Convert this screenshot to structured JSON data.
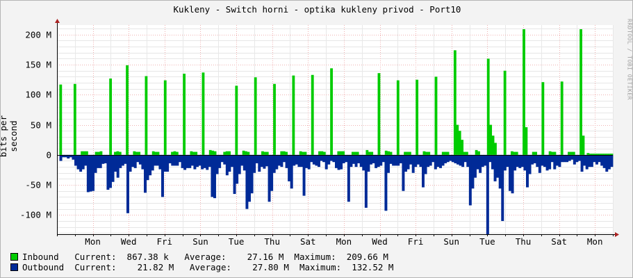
{
  "chart_data": {
    "type": "area",
    "title": "Kukleny - Switch horni - optika kukleny privod - Port10",
    "ylabel": "bits per second",
    "watermark": "RRDTOOL / TOBI OETIKER",
    "ylim": [
      -132,
      216
    ],
    "yunit": "M",
    "yticks": [
      {
        "value": 200,
        "label": "200 M"
      },
      {
        "value": 150,
        "label": "150 M"
      },
      {
        "value": 100,
        "label": "100 M"
      },
      {
        "value": 50,
        "label": "50 M"
      },
      {
        "value": 0,
        "label": "0"
      },
      {
        "value": -50,
        "label": "-50 M"
      },
      {
        "value": -100,
        "label": "-100 M"
      }
    ],
    "x_range_days": 15.5,
    "day_labels": [
      "Mon",
      "Wed",
      "Fri",
      "Sun",
      "Tue",
      "Thu",
      "Sat",
      "Mon",
      "Wed",
      "Fri",
      "Sun",
      "Tue",
      "Thu",
      "Sat",
      "Mon"
    ],
    "grid": true,
    "series": [
      {
        "name": "Inbound",
        "color": "#00cc00",
        "values": [
          0,
          117,
          0,
          0,
          0,
          0,
          0,
          118,
          0,
          0,
          6,
          6,
          6,
          0,
          0,
          0,
          5,
          5,
          6,
          0,
          0,
          0,
          127,
          0,
          5,
          6,
          5,
          0,
          0,
          149,
          0,
          0,
          6,
          5,
          5,
          0,
          0,
          131,
          0,
          0,
          6,
          5,
          5,
          0,
          0,
          124,
          0,
          0,
          5,
          6,
          5,
          0,
          0,
          135,
          0,
          0,
          6,
          5,
          5,
          0,
          0,
          137,
          0,
          0,
          8,
          7,
          6,
          0,
          0,
          0,
          5,
          6,
          6,
          0,
          0,
          115,
          0,
          0,
          7,
          6,
          5,
          0,
          0,
          129,
          0,
          0,
          6,
          5,
          5,
          0,
          0,
          118,
          0,
          0,
          6,
          6,
          5,
          0,
          0,
          132,
          0,
          0,
          6,
          5,
          5,
          0,
          0,
          133,
          0,
          0,
          6,
          6,
          5,
          0,
          0,
          144,
          0,
          0,
          6,
          6,
          6,
          0,
          0,
          0,
          5,
          5,
          5,
          0,
          0,
          0,
          8,
          5,
          5,
          0,
          0,
          136,
          0,
          0,
          7,
          6,
          5,
          0,
          0,
          124,
          0,
          0,
          5,
          5,
          5,
          0,
          0,
          125,
          0,
          0,
          6,
          5,
          5,
          0,
          0,
          130,
          0,
          0,
          5,
          5,
          5,
          0,
          0,
          174,
          50,
          40,
          25,
          5,
          5,
          0,
          0,
          0,
          8,
          6,
          0,
          0,
          0,
          160,
          50,
          32,
          20,
          0,
          0,
          0,
          140,
          0,
          0,
          6,
          5,
          5,
          0,
          0,
          209,
          46,
          0,
          0,
          5,
          5,
          0,
          0,
          121,
          0,
          0,
          6,
          5,
          5,
          0,
          0,
          122,
          0,
          0,
          5,
          5,
          5,
          0,
          0,
          209,
          32,
          0,
          3,
          2,
          2,
          2,
          2,
          2,
          2,
          2,
          2,
          2,
          2
        ]
      },
      {
        "name": "Outbound",
        "color": "#002a97",
        "values": [
          0,
          -10,
          -4,
          -4,
          -6,
          -4,
          -8,
          -18,
          -24,
          -28,
          -24,
          -18,
          -62,
          -61,
          -60,
          -30,
          -22,
          -22,
          -15,
          -14,
          -58,
          -55,
          -45,
          -28,
          -38,
          -22,
          -18,
          -15,
          -97,
          -28,
          -20,
          -22,
          -12,
          -16,
          -24,
          -63,
          -42,
          -34,
          -26,
          -18,
          -18,
          -24,
          -70,
          -28,
          -28,
          -14,
          -18,
          -18,
          -18,
          -12,
          -22,
          -25,
          -22,
          -22,
          -18,
          -24,
          -20,
          -18,
          -24,
          -22,
          -25,
          -20,
          -70,
          -72,
          -32,
          -22,
          -12,
          -16,
          -34,
          -28,
          -20,
          -65,
          -48,
          -32,
          -18,
          -26,
          -90,
          -78,
          -64,
          -30,
          -14,
          -28,
          -20,
          -23,
          -19,
          -78,
          -60,
          -30,
          -24,
          -18,
          -20,
          -12,
          -22,
          -44,
          -56,
          -18,
          -16,
          -20,
          -20,
          -68,
          -22,
          -24,
          -12,
          -16,
          -18,
          -20,
          -10,
          -12,
          -24,
          -16,
          -10,
          -12,
          -22,
          -25,
          -24,
          -14,
          -12,
          -78,
          -20,
          -15,
          -20,
          -14,
          -20,
          -26,
          -88,
          -28,
          -16,
          -14,
          -22,
          -20,
          -18,
          -12,
          -93,
          -30,
          -15,
          -18,
          -18,
          -18,
          -14,
          -60,
          -28,
          -24,
          -16,
          -30,
          -20,
          -16,
          -20,
          -54,
          -32,
          -20,
          -18,
          -12,
          -24,
          -20,
          -22,
          -18,
          -14,
          -12,
          -10,
          -12,
          -14,
          -16,
          -18,
          -20,
          -12,
          -20,
          -84,
          -56,
          -38,
          -24,
          -30,
          -20,
          -18,
          -132,
          -12,
          -24,
          -44,
          -38,
          -56,
          -110,
          -26,
          -20,
          -60,
          -64,
          -26,
          -20,
          -22,
          -20,
          -26,
          -54,
          -32,
          -16,
          -14,
          -20,
          -30,
          -18,
          -20,
          -26,
          -24,
          -12,
          -24,
          -18,
          -20,
          -12,
          -12,
          -12,
          -10,
          -8,
          -16,
          -12,
          -10,
          -28,
          -18,
          -24,
          -20,
          -20,
          -12,
          -16,
          -12,
          -18,
          -22,
          -28,
          -24,
          -20
        ]
      }
    ],
    "legend": [
      {
        "name": "Inbound",
        "current": "867.38 k",
        "average": "27.16 M",
        "maximum": "209.66 M"
      },
      {
        "name": "Outbound",
        "current": "21.82 M",
        "average": "27.80 M",
        "maximum": "132.52 M"
      }
    ],
    "legend_labels": {
      "current": "Current:",
      "average": "Average:",
      "maximum": "Maximum:"
    }
  }
}
